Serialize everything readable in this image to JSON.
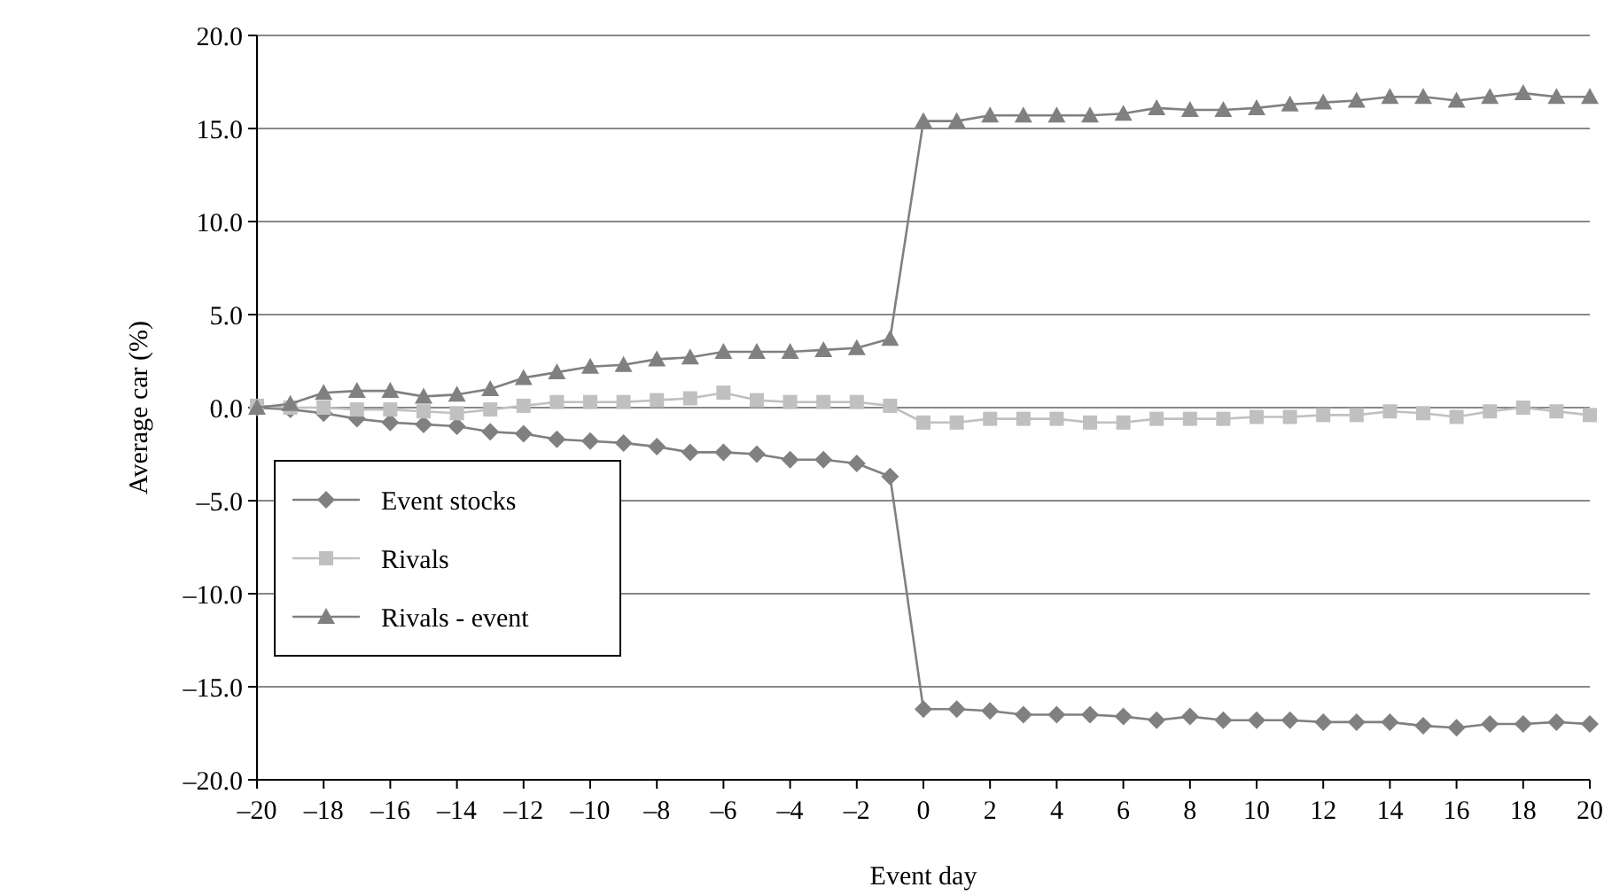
{
  "chart_data": {
    "type": "line",
    "xlabel": "Event day",
    "ylabel": "Average car (%)",
    "x": [
      -20,
      -19,
      -18,
      -17,
      -16,
      -15,
      -14,
      -13,
      -12,
      -11,
      -10,
      -9,
      -8,
      -7,
      -6,
      -5,
      -4,
      -3,
      -2,
      -1,
      0,
      1,
      2,
      3,
      4,
      5,
      6,
      7,
      8,
      9,
      10,
      11,
      12,
      13,
      14,
      15,
      16,
      17,
      18,
      19,
      20
    ],
    "series": [
      {
        "name": "Event stocks",
        "color": "#808080",
        "marker": "diamond",
        "values": [
          0,
          -0.1,
          -0.3,
          -0.6,
          -0.8,
          -0.9,
          -1.0,
          -1.3,
          -1.4,
          -1.7,
          -1.8,
          -1.9,
          -2.1,
          -2.4,
          -2.4,
          -2.5,
          -2.8,
          -2.8,
          -3.0,
          -3.7,
          -16.2,
          -16.2,
          -16.3,
          -16.5,
          -16.5,
          -16.5,
          -16.6,
          -16.8,
          -16.6,
          -16.8,
          -16.8,
          -16.8,
          -16.9,
          -16.9,
          -16.9,
          -17.1,
          -17.2,
          -17.0,
          -17.0,
          -16.9,
          -17.0
        ]
      },
      {
        "name": "Rivals",
        "color": "#c0c0c0",
        "marker": "square",
        "values": [
          0.1,
          0.0,
          0.0,
          -0.1,
          -0.1,
          -0.2,
          -0.3,
          -0.1,
          0.1,
          0.3,
          0.3,
          0.3,
          0.4,
          0.5,
          0.8,
          0.4,
          0.3,
          0.3,
          0.3,
          0.1,
          -0.8,
          -0.8,
          -0.6,
          -0.6,
          -0.6,
          -0.8,
          -0.8,
          -0.6,
          -0.6,
          -0.6,
          -0.5,
          -0.5,
          -0.4,
          -0.4,
          -0.2,
          -0.3,
          -0.5,
          -0.2,
          0.0,
          -0.2,
          -0.4
        ]
      },
      {
        "name": "Rivals - event",
        "color": "#808080",
        "marker": "triangle",
        "values": [
          0,
          0.2,
          0.8,
          0.9,
          0.9,
          0.6,
          0.7,
          1.0,
          1.6,
          1.9,
          2.2,
          2.3,
          2.6,
          2.7,
          3.0,
          3.0,
          3.0,
          3.1,
          3.2,
          3.7,
          15.4,
          15.4,
          15.7,
          15.7,
          15.7,
          15.7,
          15.8,
          16.1,
          16.0,
          16.0,
          16.1,
          16.3,
          16.4,
          16.5,
          16.7,
          16.7,
          16.5,
          16.7,
          16.9,
          16.7,
          16.7
        ]
      }
    ],
    "xlim": [
      -20,
      20
    ],
    "xticks": [
      {
        "value": -20,
        "label": "–20"
      },
      {
        "value": -18,
        "label": "–18"
      },
      {
        "value": -16,
        "label": "–16"
      },
      {
        "value": -14,
        "label": "–14"
      },
      {
        "value": -12,
        "label": "–12"
      },
      {
        "value": -10,
        "label": "–10"
      },
      {
        "value": -8,
        "label": "–8"
      },
      {
        "value": -6,
        "label": "–6"
      },
      {
        "value": -4,
        "label": "–4"
      },
      {
        "value": -2,
        "label": "–2"
      },
      0,
      2,
      4,
      6,
      8,
      10,
      12,
      14,
      16,
      18,
      20
    ],
    "ylim": [
      -20,
      20
    ],
    "yticks": [
      {
        "value": -20,
        "label": "–20.0"
      },
      {
        "value": -15,
        "label": "–15.0"
      },
      {
        "value": -10,
        "label": "–10.0"
      },
      {
        "value": -5,
        "label": "–5.0"
      },
      {
        "value": 0,
        "label": "0.0"
      },
      {
        "value": 5,
        "label": "5.0"
      },
      {
        "value": 10,
        "label": "10.0"
      },
      {
        "value": 15,
        "label": "15.0"
      },
      {
        "value": 20,
        "label": "20.0"
      }
    ],
    "grid": "y",
    "legend": "bottom left",
    "line_style": "solid"
  }
}
